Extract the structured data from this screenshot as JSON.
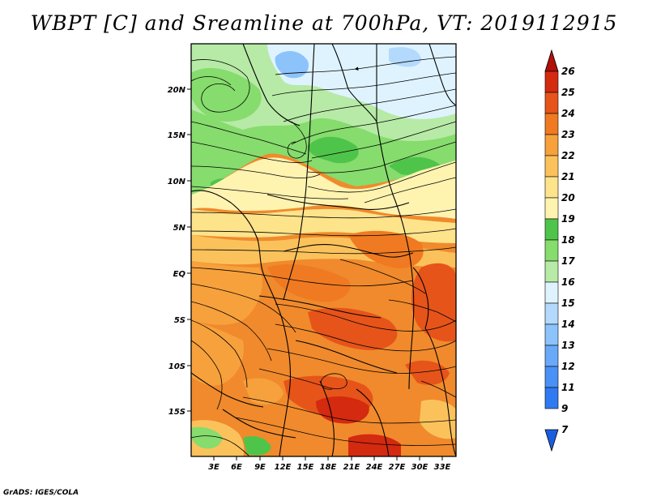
{
  "title": "WBPT [C] and Sreamline at 700hPa, VT: 2019112915",
  "credit": "GrADS: IGES/COLA",
  "map": {
    "lat_labels": [
      "20N",
      "15N",
      "10N",
      "5N",
      "EQ",
      "5S",
      "10S",
      "15S"
    ],
    "lon_labels": [
      "3E",
      "6E",
      "9E",
      "12E",
      "15E",
      "18E",
      "21E",
      "24E",
      "27E",
      "30E",
      "33E"
    ]
  },
  "colorbar": {
    "labels": [
      "7",
      "9",
      "11",
      "12",
      "13",
      "14",
      "15",
      "16",
      "17",
      "18",
      "19",
      "20",
      "21",
      "22",
      "23",
      "24",
      "25",
      "26"
    ],
    "colors": [
      "#1a5ee0",
      "#2f7af0",
      "#4a91f5",
      "#6aa9f8",
      "#8cc3fb",
      "#b3dafd",
      "#dff3ff",
      "#b7eaa6",
      "#86dc6d",
      "#4fc44a",
      "#fff3b0",
      "#fde38a",
      "#fbc25c",
      "#f7a13c",
      "#ef7a22",
      "#e6541a",
      "#d32a10",
      "#b00f0a"
    ]
  }
}
